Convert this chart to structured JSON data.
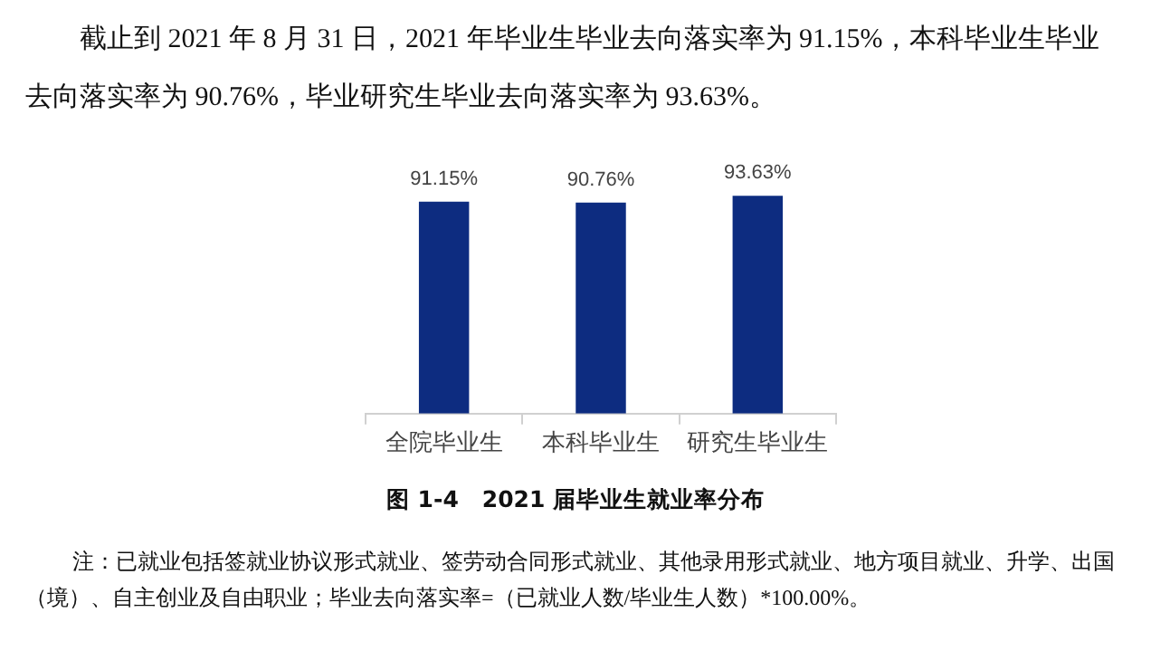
{
  "chart_data": {
    "type": "bar",
    "title": "图 1-4　2021 届毕业生就业率分布",
    "annotations": [
      "截止到 2021 年 8 月 31 日，2021 年毕业生毕业去向落实率为 91.15%，本科毕业生毕业去向落实率为 90.76%，毕业研究生毕业去向落实率为 93.63%。",
      "注：已就业包括签就业协议形式就业、签劳动合同形式就业、其他录用形式就业、地方项目就业、升学、出国（境）、自主创业及自由职业；毕业去向落实率=（已就业人数/毕业生人数）*100.00%。"
    ],
    "categories": [
      "全院毕业生",
      "本科毕业生",
      "研究生毕业生"
    ],
    "values": [
      91.15,
      90.76,
      93.63
    ],
    "value_labels": [
      "91.15%",
      "90.76%",
      "93.63%"
    ],
    "color": "#0d2c80",
    "grid": false,
    "legend": false
  }
}
